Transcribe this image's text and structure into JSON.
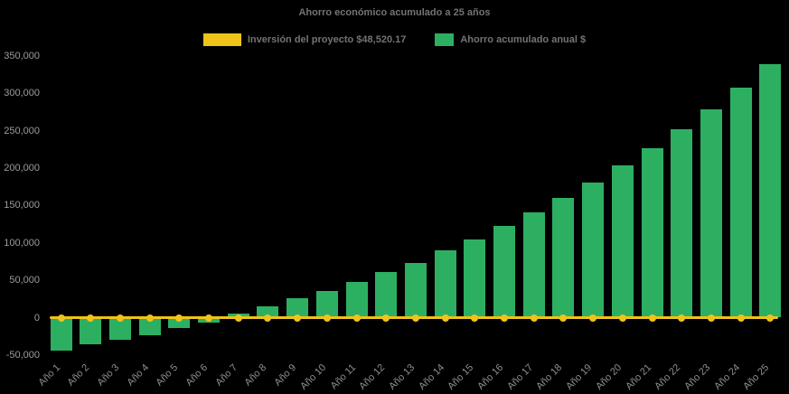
{
  "chart": {
    "title": "Ahorro económico acumulado a 25 años",
    "legend": [
      {
        "label": "Inversión del proyecto $48,520.17",
        "series": "investment",
        "swatch": "line"
      },
      {
        "label": "Ahorro acumulado anual $",
        "series": "savings",
        "swatch": "bar"
      }
    ],
    "colors": {
      "background": "#000000",
      "bar_green": "#2daf62",
      "line_yellow": "#efc31a",
      "title_text": "#737373",
      "ytick_text": "#9c9c9c",
      "xtick_text": "#8f8f8f"
    }
  },
  "chart_data": {
    "type": "bar",
    "title": "Ahorro económico acumulado a 25 años",
    "categories": [
      "Año 1",
      "Año 2",
      "Año 3",
      "Año 4",
      "Año 5",
      "Año 6",
      "Año 7",
      "Año 8",
      "Año 9",
      "Año 10",
      "Año 11",
      "Año 12",
      "Año 13",
      "Año 14",
      "Año 15",
      "Año 16",
      "Año 17",
      "Año 18",
      "Año 19",
      "Año 20",
      "Año 21",
      "Año 22",
      "Año 23",
      "Año 24",
      "Año 25"
    ],
    "series": [
      {
        "name": "Inversión del proyecto $48,520.17",
        "type": "line",
        "marker": "circle",
        "values": [
          0,
          0,
          0,
          0,
          0,
          0,
          0,
          0,
          0,
          0,
          0,
          0,
          0,
          0,
          0,
          0,
          0,
          0,
          0,
          0,
          0,
          0,
          0,
          0,
          0
        ]
      },
      {
        "name": "Ahorro acumulado anual $",
        "type": "bar",
        "values": [
          -44500,
          -36000,
          -30000,
          -24000,
          -14500,
          -7000,
          5000,
          15500,
          26000,
          36000,
          47500,
          60500,
          73500,
          89500,
          105000,
          122500,
          140500,
          160000,
          180500,
          204000,
          227000,
          252000,
          278500,
          308000,
          339000
        ]
      }
    ],
    "ylim": [
      -50000,
      350000
    ],
    "y_ticks": [
      350000,
      300000,
      250000,
      200000,
      150000,
      100000,
      50000,
      0,
      -50000
    ],
    "y_tick_labels": [
      "350,000",
      "300,000",
      "250,000",
      "200,000",
      "150,000",
      "100,000",
      "50,000",
      "0",
      "-50,000"
    ],
    "grid": false,
    "legend_position": "top",
    "x_label_rotation_deg": 45
  }
}
